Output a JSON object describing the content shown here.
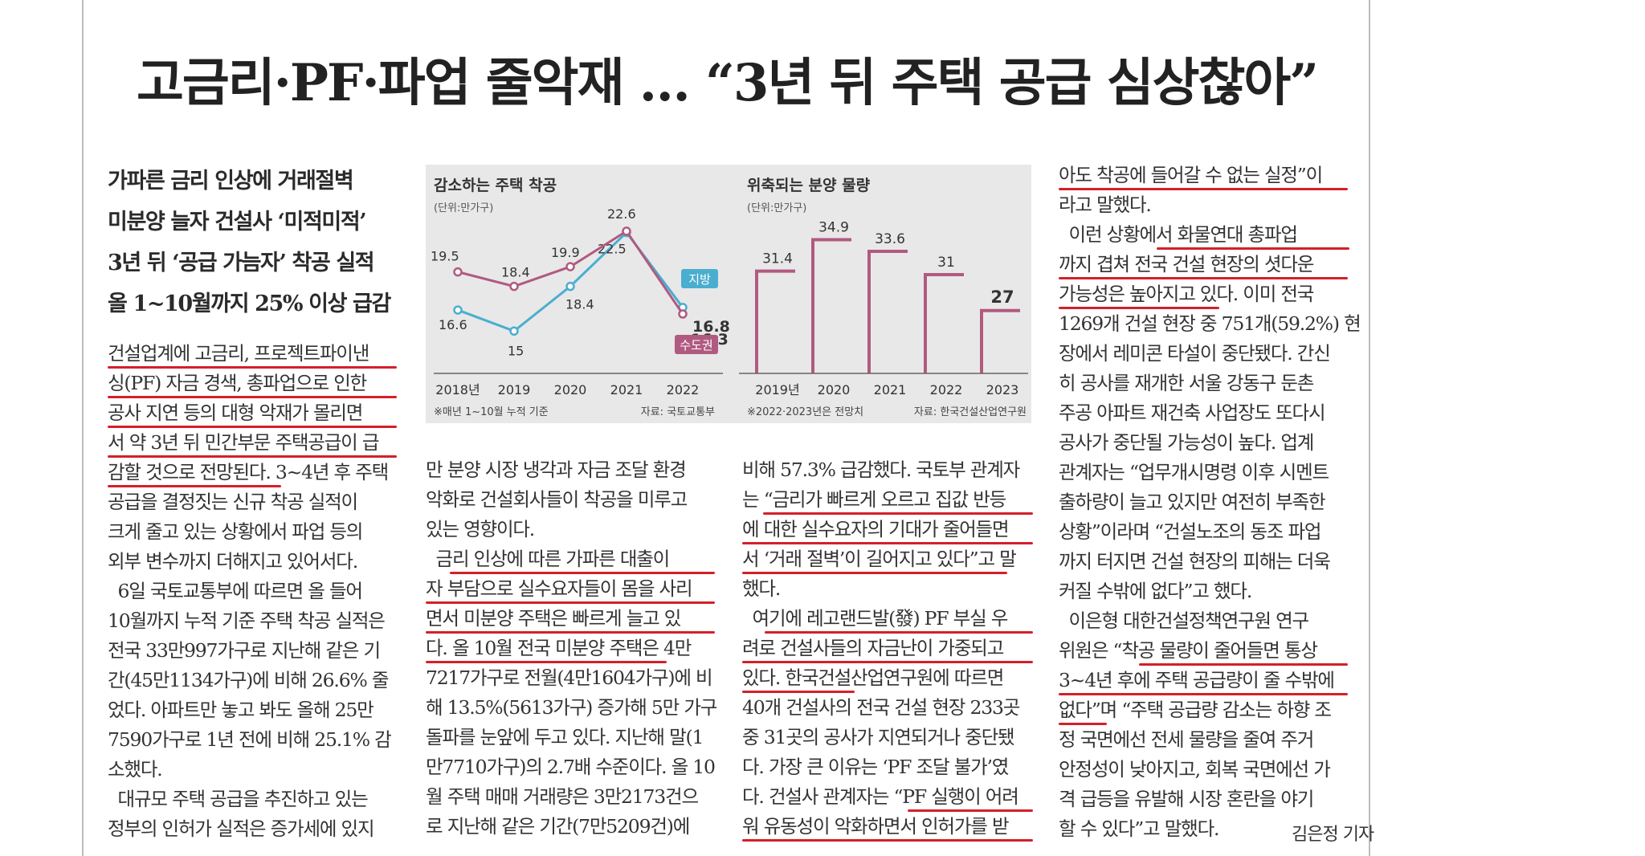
{
  "headline": "고금리·PF·파업 줄악재 … “3년 뒤 주택 공급 심상찮아”",
  "subhead": [
    "가파른 금리 인상에 거래절벽",
    "미분양 늘자 건설사 ‘미적미적’",
    "3년 뒤 ‘공급 가늠자’ 착공 실적",
    "올 1~10월까지 25% 이상 급감"
  ],
  "col1": [
    "건설업계에 고금리, 프로젝트파이낸",
    "싱(PF) 자금 경색, 총파업으로 인한",
    "공사 지연 등의 대형 악재가 몰리면",
    "서 약 3년 뒤 민간부문 주택공급이 급",
    "감할 것으로 전망된다. 3~4년 후 주택",
    "공급을 결정짓는 신규 착공 실적이",
    "크게 줄고 있는 상황에서 파업 등의",
    "외부 변수까지 더해지고 있어서다.",
    "  6일 국토교통부에 따르면 올 들어",
    "10월까지 누적 기준 주택 착공 실적은",
    "전국 33만997가구로 지난해 같은 기",
    "간(45만1134가구)에 비해 26.6% 줄",
    "었다. 아파트만 놓고 봐도 올해 25만",
    "7590가구로 1년 전에 비해 25.1% 감",
    "소했다.",
    "  대규모 주택 공급을 추진하고 있는",
    "정부의 인허가 실적은 증가세에 있지"
  ],
  "col2": [
    "만 분양 시장 냉각과 자금 조달 환경",
    "악화로 건설회사들이 착공을 미루고",
    "있는 영향이다.",
    "  금리 인상에 따른 가파른 대출이",
    "자 부담으로 실수요자들이 몸을 사리",
    "면서 미분양 주택은 빠르게 늘고 있",
    "다. 올 10월 전국 미분양 주택은 4만",
    "7217가구로 전월(4만1604가구)에 비",
    "해 13.5%(5613가구) 증가해 5만 가구",
    "돌파를 눈앞에 두고 있다. 지난해 말(1",
    "만7710가구)의 2.7배 수준이다. 올 10",
    "월 주택 매매 거래량은 3만2173건으",
    "로 지난해 같은 기간(7만5209건)에"
  ],
  "col3": [
    "비해 57.3% 급감했다. 국토부 관계자",
    "는 “금리가 빠르게 오르고 집값 반등",
    "에 대한 실수요자의 기대가 줄어들면",
    "서 ‘거래 절벽’이 길어지고 있다”고 말",
    "했다.",
    "  여기에 레고랜드발(發) PF 부실 우",
    "려로 건설사들의 자금난이 가중되고",
    "있다. 한국건설산업연구원에 따르면",
    "40개 건설사의 전국 건설 현장 233곳",
    "중 31곳의 공사가 지연되거나 중단됐",
    "다. 가장 큰 이유는 ‘PF 조달 불가’였",
    "다. 건설사 관계자는 “PF 실행이 어려",
    "워 유동성이 악화하면서 인허가를 받"
  ],
  "col4": [
    "아도 착공에 들어갈 수 없는 실정”이",
    "라고 말했다.",
    "  이런 상황에서 화물연대 총파업",
    "까지 겹쳐 전국 건설 현장의 셧다운",
    "가능성은 높아지고 있다. 이미 전국",
    "1269개 건설 현장 중 751개(59.2%) 현",
    "장에서 레미콘 타설이 중단됐다. 간신",
    "히 공사를 재개한 서울 강동구 둔촌",
    "주공 아파트 재건축 사업장도 또다시",
    "공사가 중단될 가능성이 높다. 업계",
    "관계자는 “업무개시명령 이후 시멘트",
    "출하량이 늘고 있지만 여전히 부족한",
    "상황”이라며 “건설노조의 동조 파업",
    "까지 터지면 건설 현장의 피해는 더욱",
    "커질 수밖에 없다”고 했다.",
    "  이은형 대한건설정책연구원 연구",
    "위원은 “착공 물량이 줄어들면 통상",
    "3~4년 후에 주택 공급량이 줄 수밖에",
    "없다”며 “주택 공급량 감소는 하향 조",
    "정 국면에선 전세 물량을 줄여 주거",
    "안정성이 낮아지고, 회복 국면에선 가",
    "격 급등을 유발해 시장 혼란을 야기",
    "할 수 있다”고 말했다."
  ],
  "byline": "김은정 기자",
  "colors": {
    "underline": "#d3202a",
    "jibang": "#4aaed0",
    "sudogwon": "#b15a80",
    "bars": "#b15a80",
    "chart_bg": "#e8e8e8"
  },
  "chart_data": [
    {
      "type": "line",
      "title": "감소하는 주택 착공",
      "unit_label": "(단위:만가구)",
      "categories": [
        "2018년",
        "2019",
        "2020",
        "2021",
        "2022"
      ],
      "series": [
        {
          "name": "지방",
          "values": [
            16.6,
            15,
            18.4,
            22.5,
            16.8
          ]
        },
        {
          "name": "수도권",
          "values": [
            19.5,
            18.4,
            19.9,
            22.6,
            16.3
          ]
        }
      ],
      "note": "※매년 1~10월 누적 기준",
      "source": "자료: 국토교통부",
      "ylim": [
        13,
        24
      ]
    },
    {
      "type": "bar",
      "title": "위축되는 분양 물량",
      "unit_label": "(단위:만가구)",
      "categories": [
        "2019년",
        "2020",
        "2021",
        "2022",
        "2023"
      ],
      "values": [
        31.4,
        34.9,
        33.6,
        31,
        27
      ],
      "note": "※2022·2023년은 전망치",
      "source": "자료: 한국건설산업연구원",
      "ylim": [
        20,
        37
      ]
    }
  ]
}
